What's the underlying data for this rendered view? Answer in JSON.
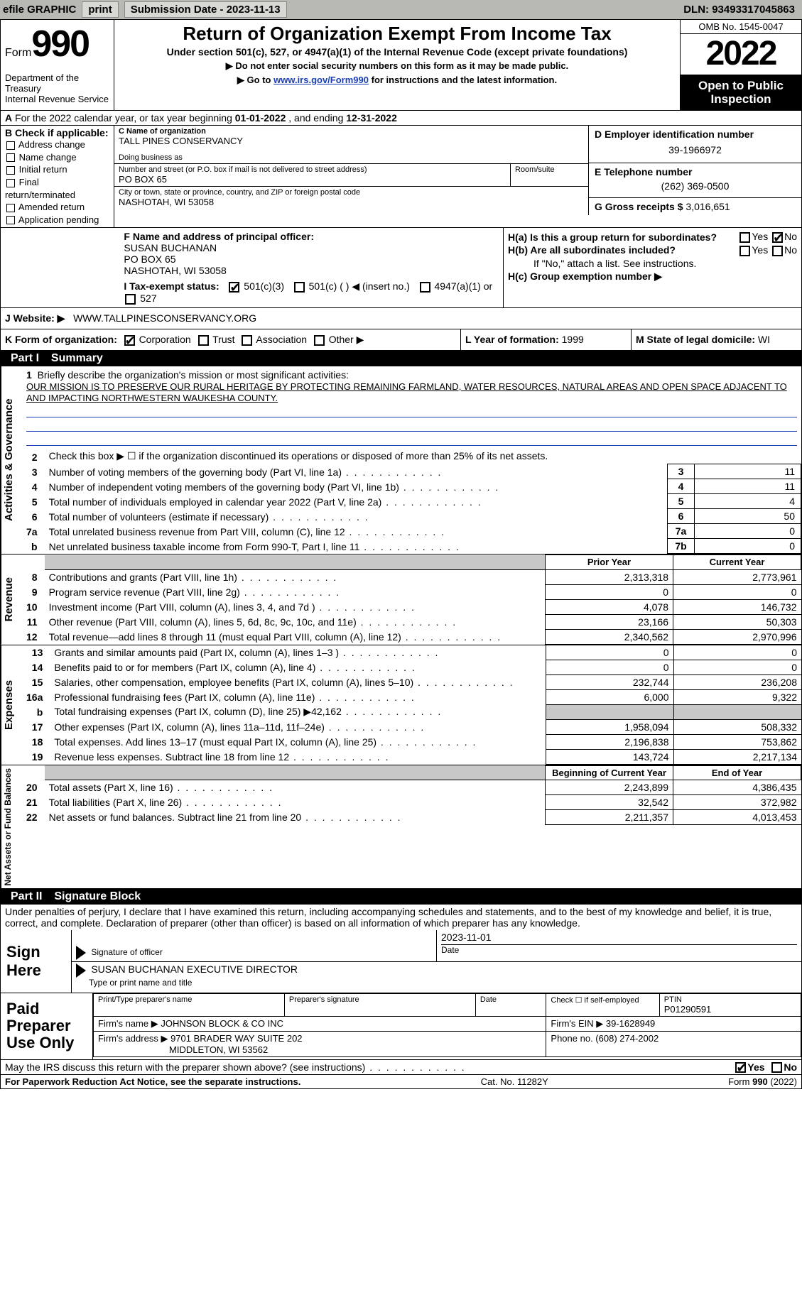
{
  "topbar": {
    "efile_label": "efile GRAPHIC",
    "print_btn": "print",
    "submission_prefix": "Submission Date - ",
    "submission_date": "2023-11-13",
    "dln_prefix": "DLN: ",
    "dln": "93493317045863"
  },
  "header": {
    "form_prefix": "Form",
    "form_number": "990",
    "dept1": "Department of the Treasury",
    "dept2": "Internal Revenue Service",
    "title": "Return of Organization Exempt From Income Tax",
    "sub1": "Under section 501(c), 527, or 4947(a)(1) of the Internal Revenue Code (except private foundations)",
    "sub2": "Do not enter social security numbers on this form as it may be made public.",
    "sub3_pre": "Go to ",
    "sub3_link": "www.irs.gov/Form990",
    "sub3_post": " for instructions and the latest information.",
    "omb": "OMB No. 1545-0047",
    "tax_year": "2022",
    "open_to_public": "Open to Public Inspection"
  },
  "row_a": {
    "label": "A",
    "text_pre": " For the 2022 calendar year, or tax year beginning ",
    "begin": "01-01-2022",
    "mid": " , and ending ",
    "end": "12-31-2022"
  },
  "col_b": {
    "label": "B Check if applicable:",
    "opts": [
      "Address change",
      "Name change",
      "Initial return",
      "Final return/terminated",
      "Amended return",
      "Application pending"
    ]
  },
  "orgblock": {
    "c_label": "C Name of organization",
    "org_name": "TALL PINES CONSERVANCY",
    "dba_label": "Doing business as",
    "addr_label": "Number and street (or P.O. box if mail is not delivered to street address)",
    "room_label": "Room/suite",
    "addr": "PO BOX 65",
    "city_label": "City or town, state or province, country, and ZIP or foreign postal code",
    "city": "NASHOTAH, WI  53058"
  },
  "right_col": {
    "d_label": "D Employer identification number",
    "ein": "39-1966972",
    "e_label": "E Telephone number",
    "phone": "(262) 369-0500",
    "g_label": "G Gross receipts $ ",
    "g_val": "3,016,651"
  },
  "f_block": {
    "f_label": "F  Name and address of principal officer:",
    "name": "SUSAN BUCHANAN",
    "addr1": "PO BOX 65",
    "addr2": "NASHOTAH, WI  53058"
  },
  "h_block": {
    "ha": "H(a)  Is this a group return for subordinates?",
    "hb": "H(b)  Are all subordinates included?",
    "hb_note": "If \"No,\" attach a list. See instructions.",
    "hc": "H(c)  Group exemption number ▶",
    "yes": "Yes",
    "no": "No"
  },
  "row_i": {
    "label": "I    Tax-exempt status:",
    "c3": "501(c)(3)",
    "c": "501(c) (   ) ◀ (insert no.)",
    "a1": "4947(a)(1) or",
    "s527": "527"
  },
  "row_j": {
    "label": "J   Website: ▶",
    "url": "WWW.TALLPINESCONSERVANCY.ORG"
  },
  "row_k": {
    "label": "K Form of organization:",
    "opts": [
      "Corporation",
      "Trust",
      "Association",
      "Other ▶"
    ]
  },
  "row_l": {
    "label": "L Year of formation: ",
    "val": "1999"
  },
  "row_m": {
    "label": "M State of legal domicile: ",
    "val": "WI"
  },
  "part1": {
    "label": "Part I",
    "title": "Summary"
  },
  "vlabs": {
    "ag": "Activities & Governance",
    "rev": "Revenue",
    "exp": "Expenses",
    "nafb": "Net Assets or Fund Balances"
  },
  "mission": {
    "num": "1",
    "prompt": "Briefly describe the organization's mission or most significant activities:",
    "text": "OUR MISSION IS TO PRESERVE OUR RURAL HERITAGE BY PROTECTING REMAINING FARMLAND, WATER RESOURCES, NATURAL AREAS AND OPEN SPACE ADJACENT TO AND IMPACTING NORTHWESTERN WAUKESHA COUNTY."
  },
  "ag_lines": [
    {
      "n": "2",
      "d": "Check this box ▶ ☐  if the organization discontinued its operations or disposed of more than 25% of its net assets.",
      "box": "",
      "v": ""
    },
    {
      "n": "3",
      "d": "Number of voting members of the governing body (Part VI, line 1a)",
      "box": "3",
      "v": "11"
    },
    {
      "n": "4",
      "d": "Number of independent voting members of the governing body (Part VI, line 1b)",
      "box": "4",
      "v": "11"
    },
    {
      "n": "5",
      "d": "Total number of individuals employed in calendar year 2022 (Part V, line 2a)",
      "box": "5",
      "v": "4"
    },
    {
      "n": "6",
      "d": "Total number of volunteers (estimate if necessary)",
      "box": "6",
      "v": "50"
    },
    {
      "n": "7a",
      "d": "Total unrelated business revenue from Part VIII, column (C), line 12",
      "box": "7a",
      "v": "0"
    },
    {
      "n": "b",
      "d": "Net unrelated business taxable income from Form 990-T, Part I, line 11",
      "box": "7b",
      "v": "0"
    }
  ],
  "fin_headers": {
    "py": "Prior Year",
    "cy": "Current Year",
    "bcy": "Beginning of Current Year",
    "eoy": "End of Year"
  },
  "rev_lines": [
    {
      "n": "8",
      "d": "Contributions and grants (Part VIII, line 1h)",
      "py": "2,313,318",
      "cy": "2,773,961"
    },
    {
      "n": "9",
      "d": "Program service revenue (Part VIII, line 2g)",
      "py": "0",
      "cy": "0"
    },
    {
      "n": "10",
      "d": "Investment income (Part VIII, column (A), lines 3, 4, and 7d )",
      "py": "4,078",
      "cy": "146,732"
    },
    {
      "n": "11",
      "d": "Other revenue (Part VIII, column (A), lines 5, 6d, 8c, 9c, 10c, and 11e)",
      "py": "23,166",
      "cy": "50,303"
    },
    {
      "n": "12",
      "d": "Total revenue—add lines 8 through 11 (must equal Part VIII, column (A), line 12)",
      "py": "2,340,562",
      "cy": "2,970,996"
    }
  ],
  "exp_lines": [
    {
      "n": "13",
      "d": "Grants and similar amounts paid (Part IX, column (A), lines 1–3 )",
      "py": "0",
      "cy": "0"
    },
    {
      "n": "14",
      "d": "Benefits paid to or for members (Part IX, column (A), line 4)",
      "py": "0",
      "cy": "0"
    },
    {
      "n": "15",
      "d": "Salaries, other compensation, employee benefits (Part IX, column (A), lines 5–10)",
      "py": "232,744",
      "cy": "236,208"
    },
    {
      "n": "16a",
      "d": "Professional fundraising fees (Part IX, column (A), line 11e)",
      "py": "6,000",
      "cy": "9,322"
    },
    {
      "n": "b",
      "d": "Total fundraising expenses (Part IX, column (D), line 25) ▶42,162",
      "py": "GREY",
      "cy": "GREY"
    },
    {
      "n": "17",
      "d": "Other expenses (Part IX, column (A), lines 11a–11d, 11f–24e)",
      "py": "1,958,094",
      "cy": "508,332"
    },
    {
      "n": "18",
      "d": "Total expenses. Add lines 13–17 (must equal Part IX, column (A), line 25)",
      "py": "2,196,838",
      "cy": "753,862"
    },
    {
      "n": "19",
      "d": "Revenue less expenses. Subtract line 18 from line 12",
      "py": "143,724",
      "cy": "2,217,134"
    }
  ],
  "na_lines": [
    {
      "n": "20",
      "d": "Total assets (Part X, line 16)",
      "py": "2,243,899",
      "cy": "4,386,435"
    },
    {
      "n": "21",
      "d": "Total liabilities (Part X, line 26)",
      "py": "32,542",
      "cy": "372,982"
    },
    {
      "n": "22",
      "d": "Net assets or fund balances. Subtract line 21 from line 20",
      "py": "2,211,357",
      "cy": "4,013,453"
    }
  ],
  "part2": {
    "label": "Part II",
    "title": "Signature Block"
  },
  "sig_declare": "Under penalties of perjury, I declare that I have examined this return, including accompanying schedules and statements, and to the best of my knowledge and belief, it is true, correct, and complete. Declaration of preparer (other than officer) is based on all information of which preparer has any knowledge.",
  "sign": {
    "label": "Sign Here",
    "sig_officer_lbl": "Signature of officer",
    "date_lbl": "Date",
    "date_val": "2023-11-01",
    "name_val": "SUSAN BUCHANAN  EXECUTIVE DIRECTOR",
    "name_lbl": "Type or print name and title"
  },
  "paid": {
    "label": "Paid Preparer Use Only",
    "r1": {
      "name_lbl": "Print/Type preparer's name",
      "sig_lbl": "Preparer's signature",
      "date_lbl": "Date",
      "check_lbl": "Check ☐ if self-employed",
      "ptin_lbl": "PTIN",
      "ptin": "P01290591"
    },
    "r2": {
      "firm_lbl": "Firm's name    ▶",
      "firm": "JOHNSON BLOCK & CO INC",
      "ein_lbl": "Firm's EIN ▶ ",
      "ein": "39-1628949"
    },
    "r3": {
      "addr_lbl": "Firm's address ▶",
      "addr1": "9701 BRADER WAY SUITE 202",
      "addr2": "MIDDLETON, WI  53562",
      "ph_lbl": "Phone no. ",
      "ph": "(608) 274-2002"
    }
  },
  "discuss": {
    "text": "May the IRS discuss this return with the preparer shown above? (see instructions)",
    "yes": "Yes",
    "no": "No"
  },
  "footer": {
    "left": "For Paperwork Reduction Act Notice, see the separate instructions.",
    "mid": "Cat. No. 11282Y",
    "right_pre": "Form ",
    "right_form": "990",
    "right_post": " (2022)"
  },
  "colors": {
    "topbar_bg": "#b8b8b4",
    "link": "#1a3fb5",
    "black": "#000000",
    "grey": "#c8c8c8"
  }
}
